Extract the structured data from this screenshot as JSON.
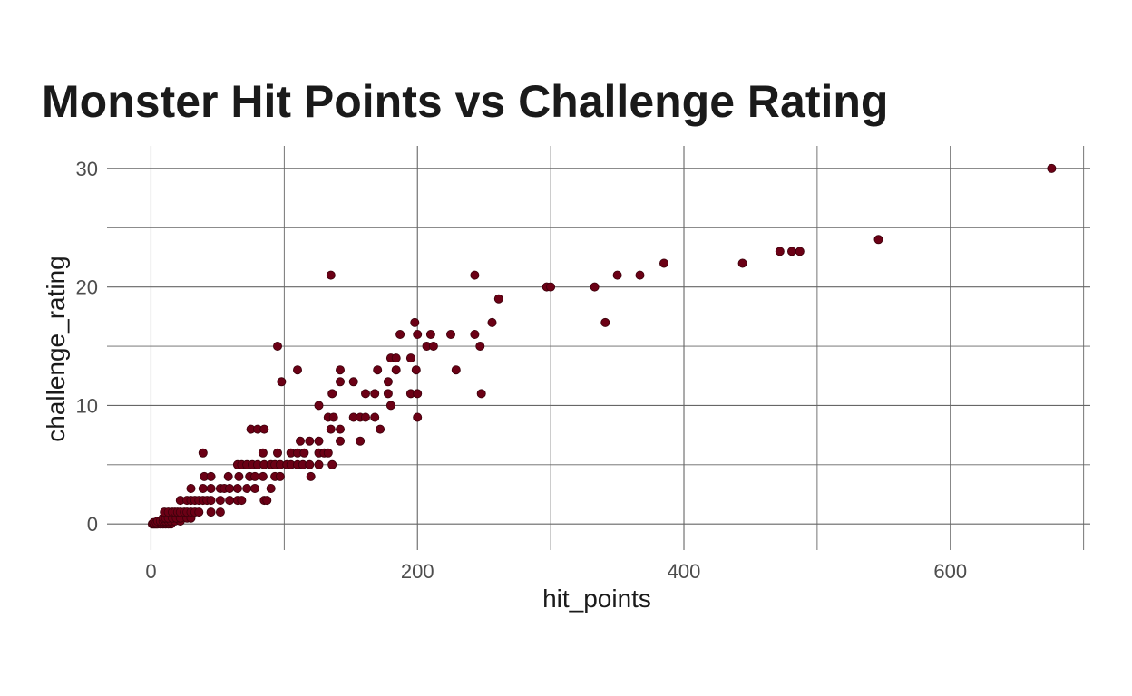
{
  "chart_data": {
    "type": "scatter",
    "title": "Monster Hit Points vs Challenge Rating",
    "xlabel": "hit_points",
    "ylabel": "challenge_rating",
    "xlim": [
      -33,
      705
    ],
    "ylim": [
      -2.2,
      31.9
    ],
    "x_ticks": [
      0,
      200,
      400,
      600
    ],
    "y_ticks": [
      0,
      10,
      20,
      30
    ],
    "x_tick_labels": [
      "0",
      "200",
      "400",
      "600"
    ],
    "y_tick_labels": [
      "0",
      "10",
      "20",
      "30"
    ],
    "grid": true,
    "point_color": "#6b0015",
    "points": [
      [
        1,
        0
      ],
      [
        2,
        0
      ],
      [
        3,
        0
      ],
      [
        4,
        0
      ],
      [
        5,
        0
      ],
      [
        7,
        0
      ],
      [
        9,
        0
      ],
      [
        11,
        0
      ],
      [
        13,
        0
      ],
      [
        15,
        0
      ],
      [
        2,
        0.125
      ],
      [
        4,
        0.125
      ],
      [
        7,
        0.125
      ],
      [
        9,
        0.125
      ],
      [
        11,
        0.125
      ],
      [
        13,
        0.125
      ],
      [
        5,
        0.25
      ],
      [
        7,
        0.25
      ],
      [
        9,
        0.25
      ],
      [
        11,
        0.25
      ],
      [
        13,
        0.25
      ],
      [
        15,
        0.25
      ],
      [
        18,
        0.25
      ],
      [
        22,
        0.25
      ],
      [
        9,
        0.5
      ],
      [
        11,
        0.5
      ],
      [
        13,
        0.5
      ],
      [
        16,
        0.5
      ],
      [
        19,
        0.5
      ],
      [
        22,
        0.5
      ],
      [
        27,
        0.5
      ],
      [
        30,
        0.5
      ],
      [
        10,
        1
      ],
      [
        13,
        1
      ],
      [
        16,
        1
      ],
      [
        18,
        1
      ],
      [
        20,
        1
      ],
      [
        22,
        1
      ],
      [
        25,
        1
      ],
      [
        27,
        1
      ],
      [
        30,
        1
      ],
      [
        33,
        1
      ],
      [
        36,
        1
      ],
      [
        45,
        1
      ],
      [
        52,
        1
      ],
      [
        22,
        2
      ],
      [
        27,
        2
      ],
      [
        30,
        2
      ],
      [
        33,
        2
      ],
      [
        36,
        2
      ],
      [
        39,
        2
      ],
      [
        42,
        2
      ],
      [
        45,
        2
      ],
      [
        52,
        2
      ],
      [
        59,
        2
      ],
      [
        65,
        2
      ],
      [
        68,
        2
      ],
      [
        85,
        2
      ],
      [
        87,
        2
      ],
      [
        30,
        3
      ],
      [
        39,
        3
      ],
      [
        45,
        3
      ],
      [
        52,
        3
      ],
      [
        55,
        3
      ],
      [
        59,
        3
      ],
      [
        65,
        3
      ],
      [
        72,
        3
      ],
      [
        78,
        3
      ],
      [
        90,
        3
      ],
      [
        40,
        4
      ],
      [
        45,
        4
      ],
      [
        58,
        4
      ],
      [
        66,
        4
      ],
      [
        74,
        4
      ],
      [
        78,
        4
      ],
      [
        84,
        4
      ],
      [
        93,
        4
      ],
      [
        97,
        4
      ],
      [
        120,
        4
      ],
      [
        65,
        5
      ],
      [
        68,
        5
      ],
      [
        72,
        5
      ],
      [
        76,
        5
      ],
      [
        80,
        5
      ],
      [
        85,
        5
      ],
      [
        90,
        5
      ],
      [
        93,
        5
      ],
      [
        97,
        5
      ],
      [
        102,
        5
      ],
      [
        105,
        5
      ],
      [
        110,
        5
      ],
      [
        114,
        5
      ],
      [
        119,
        5
      ],
      [
        126,
        5
      ],
      [
        136,
        5
      ],
      [
        39,
        6
      ],
      [
        84,
        6
      ],
      [
        95,
        6
      ],
      [
        105,
        6
      ],
      [
        110,
        6
      ],
      [
        115,
        6
      ],
      [
        126,
        6
      ],
      [
        130,
        6
      ],
      [
        133,
        6
      ],
      [
        112,
        7
      ],
      [
        119,
        7
      ],
      [
        126,
        7
      ],
      [
        142,
        7
      ],
      [
        157,
        7
      ],
      [
        75,
        8
      ],
      [
        80,
        8
      ],
      [
        85,
        8
      ],
      [
        135,
        8
      ],
      [
        142,
        8
      ],
      [
        172,
        8
      ],
      [
        133,
        9
      ],
      [
        137,
        9
      ],
      [
        152,
        9
      ],
      [
        157,
        9
      ],
      [
        161,
        9
      ],
      [
        168,
        9
      ],
      [
        200,
        9
      ],
      [
        126,
        10
      ],
      [
        180,
        10
      ],
      [
        136,
        11
      ],
      [
        161,
        11
      ],
      [
        168,
        11
      ],
      [
        178,
        11
      ],
      [
        195,
        11
      ],
      [
        200,
        11
      ],
      [
        248,
        11
      ],
      [
        98,
        12
      ],
      [
        142,
        12
      ],
      [
        152,
        12
      ],
      [
        178,
        12
      ],
      [
        110,
        13
      ],
      [
        142,
        13
      ],
      [
        170,
        13
      ],
      [
        184,
        13
      ],
      [
        199,
        13
      ],
      [
        229,
        13
      ],
      [
        95,
        15
      ],
      [
        207,
        15
      ],
      [
        212,
        15
      ],
      [
        247,
        15
      ],
      [
        180,
        14
      ],
      [
        184,
        14
      ],
      [
        195,
        14
      ],
      [
        187,
        16
      ],
      [
        200,
        16
      ],
      [
        210,
        16
      ],
      [
        225,
        16
      ],
      [
        243,
        16
      ],
      [
        198,
        17
      ],
      [
        256,
        17
      ],
      [
        341,
        17
      ],
      [
        261,
        19
      ],
      [
        297,
        20
      ],
      [
        300,
        20
      ],
      [
        333,
        20
      ],
      [
        135,
        21
      ],
      [
        243,
        21
      ],
      [
        350,
        21
      ],
      [
        367,
        21
      ],
      [
        385,
        22
      ],
      [
        444,
        22
      ],
      [
        472,
        23
      ],
      [
        481,
        23
      ],
      [
        487,
        23
      ],
      [
        546,
        24
      ],
      [
        676,
        30
      ]
    ]
  }
}
